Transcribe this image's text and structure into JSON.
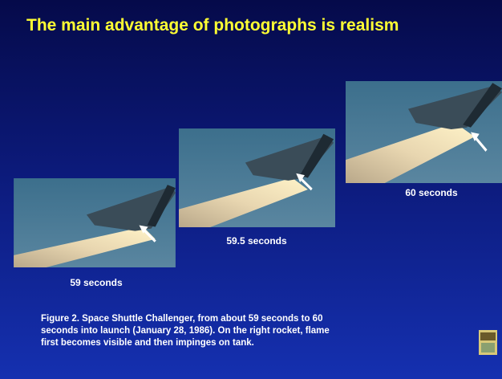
{
  "title": "The main advantage of photographs is realism",
  "photos": [
    {
      "caption": "59 seconds"
    },
    {
      "caption": "59.5 seconds"
    },
    {
      "caption": "60 seconds"
    }
  ],
  "figure_caption": [
    "Figure 2. Space Shuttle Challenger, from about 59 seconds to 60",
    "seconds into launch (January 28, 1986). On the right rocket, flame",
    "first becomes visible and then impinges on tank."
  ]
}
